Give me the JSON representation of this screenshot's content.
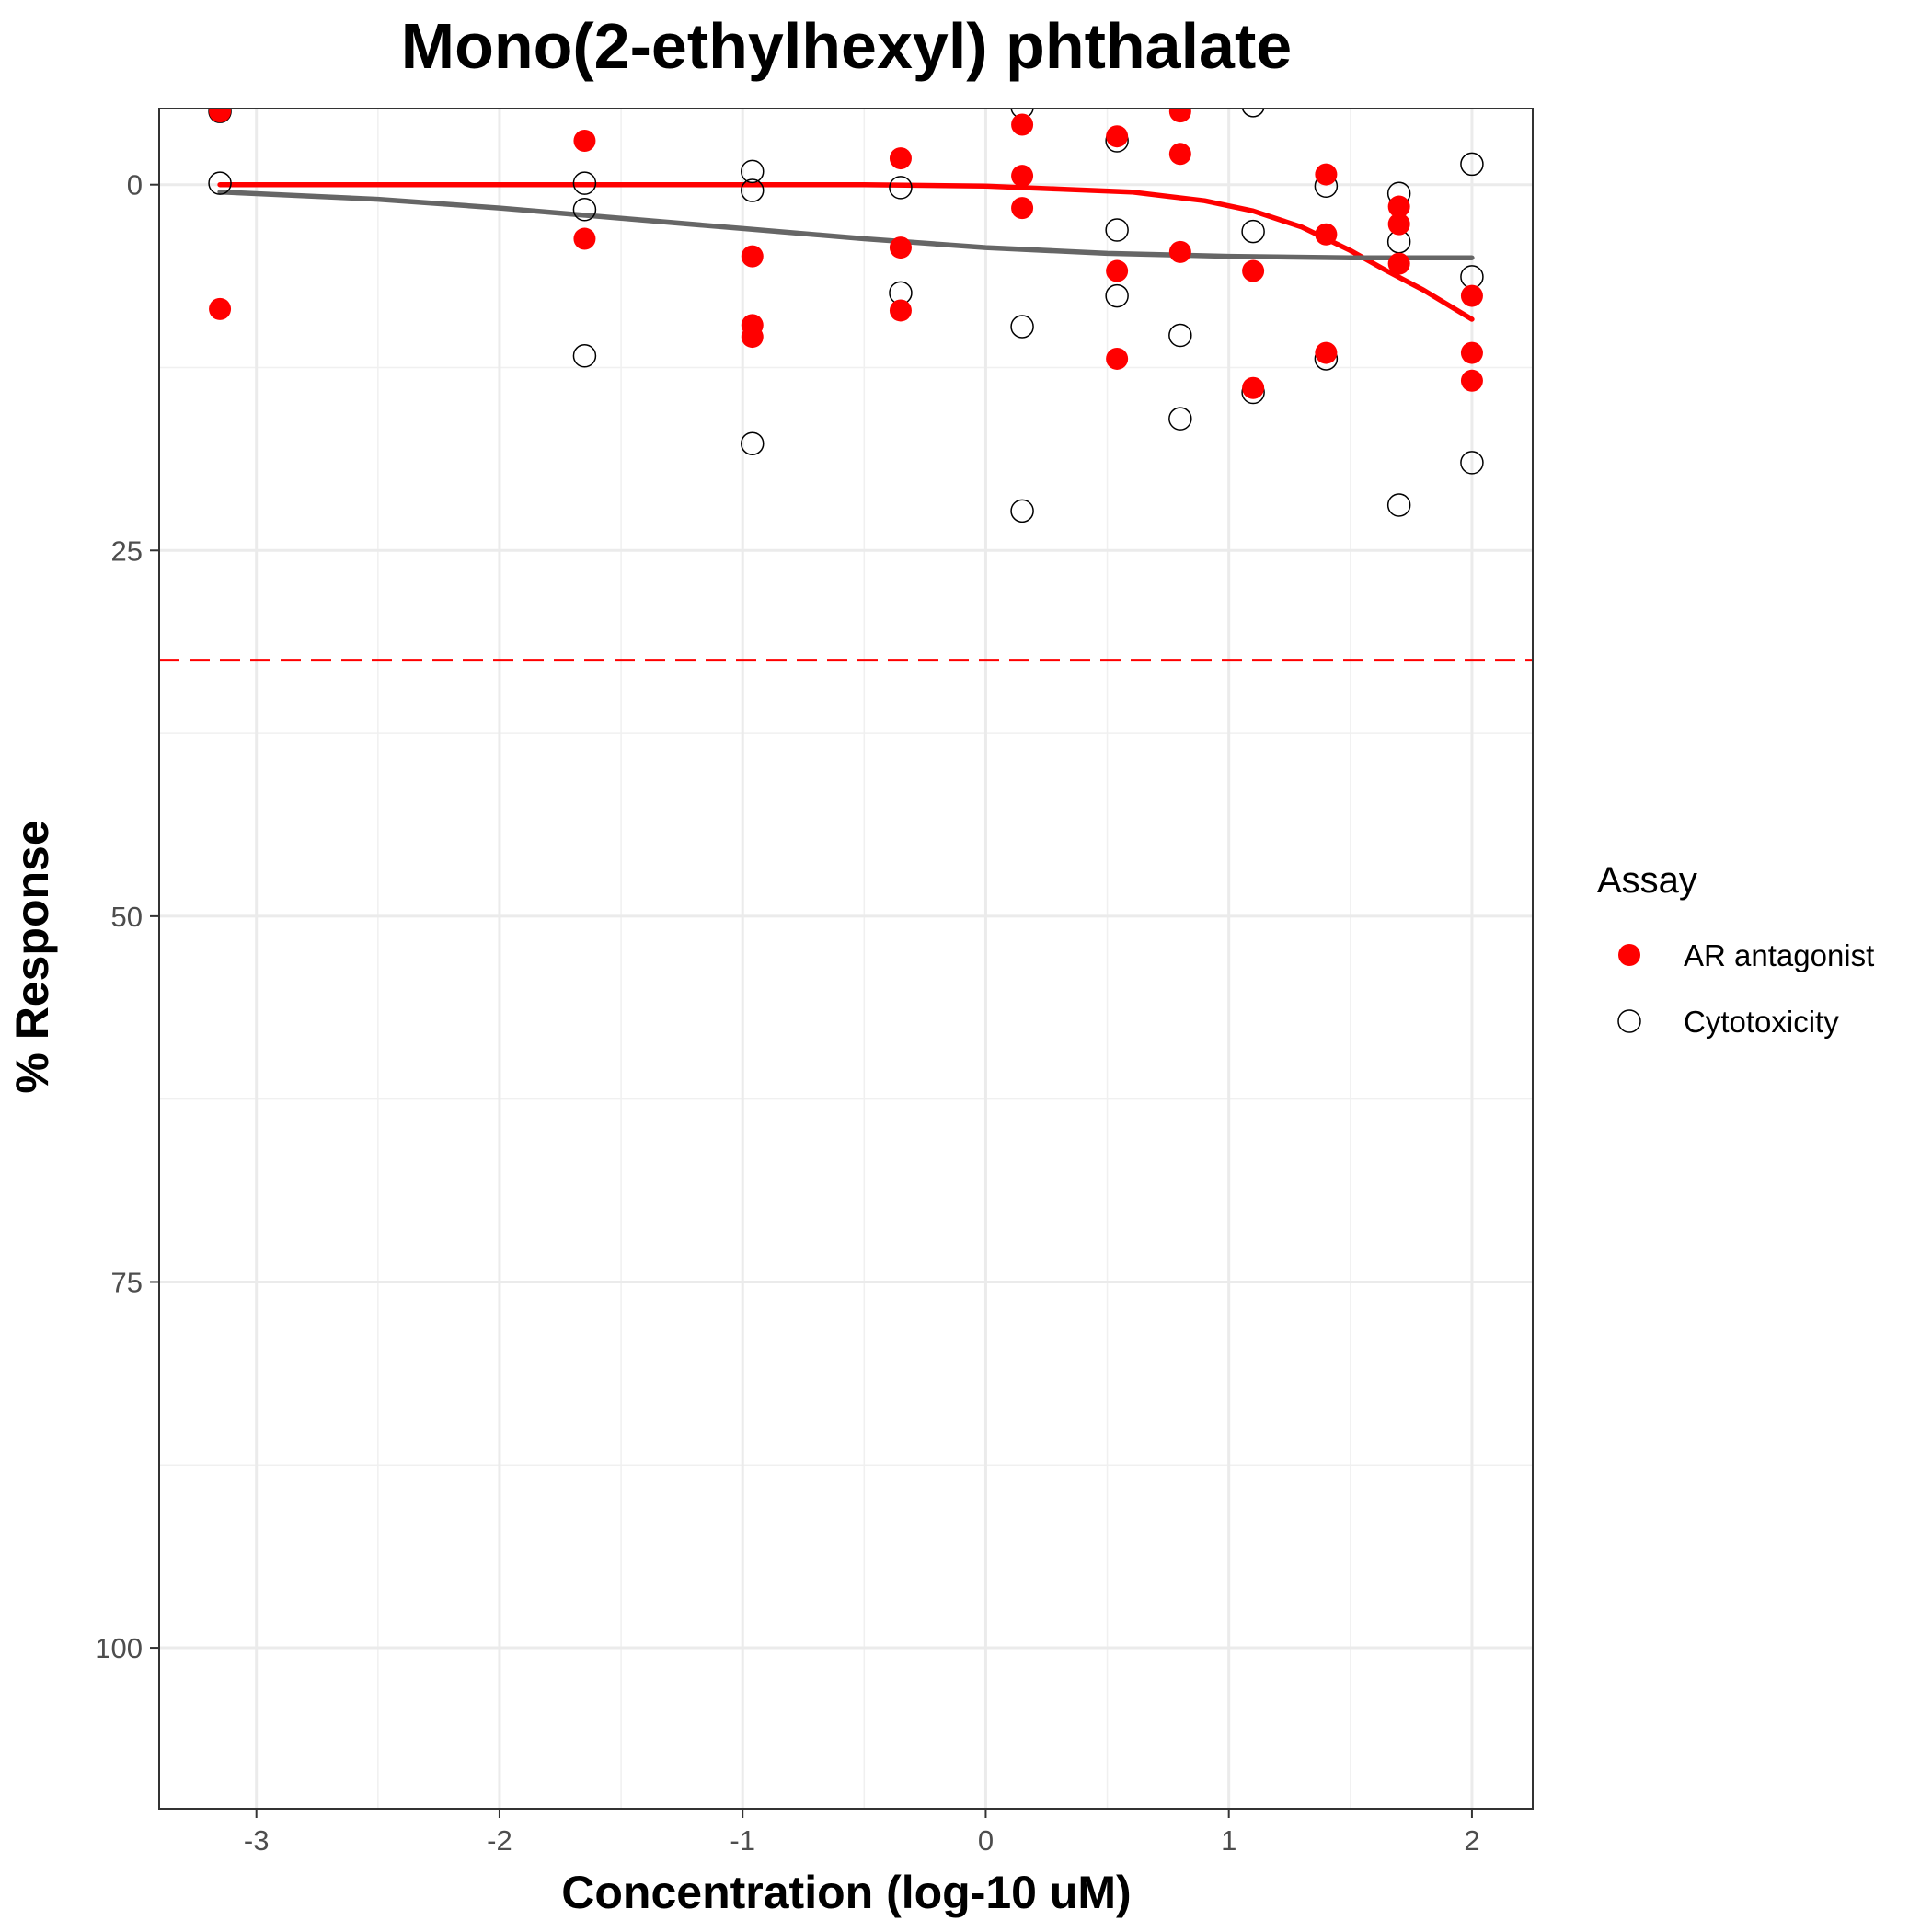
{
  "chart_data": {
    "type": "scatter",
    "title": "Mono(2-ethylhexyl) phthalate",
    "xlabel": "Concentration (log-10 uM)",
    "ylabel": "% Response",
    "xlim": [
      -3.4,
      2.25
    ],
    "ylim": [
      -5.2,
      111.0
    ],
    "y_reversed": true,
    "x_ticks": [
      -3,
      -2,
      -1,
      0,
      1,
      2
    ],
    "x_tick_labels": [
      "-3",
      "-2",
      "-1",
      "0",
      "1",
      "2"
    ],
    "y_ticks": [
      0,
      25,
      50,
      75,
      100
    ],
    "y_tick_labels": [
      "0",
      "25",
      "50",
      "75",
      "100"
    ],
    "grid": true,
    "threshold": {
      "y": 32.5,
      "color": "#ff0000",
      "style": "dashed"
    },
    "legend": {
      "title": "Assay",
      "position": "right"
    },
    "series": [
      {
        "name": "AR antagonist",
        "color": "#ff0000",
        "marker": "filled-circle",
        "points": [
          [
            -3.15,
            -5.0
          ],
          [
            -3.15,
            8.5
          ],
          [
            -1.65,
            -3.0
          ],
          [
            -1.65,
            3.7
          ],
          [
            -0.96,
            4.9
          ],
          [
            -0.96,
            9.6
          ],
          [
            -0.96,
            10.4
          ],
          [
            -0.35,
            -1.8
          ],
          [
            -0.35,
            4.3
          ],
          [
            -0.35,
            8.6
          ],
          [
            0.15,
            -4.1
          ],
          [
            0.15,
            -0.6
          ],
          [
            0.15,
            1.6
          ],
          [
            0.54,
            -3.3
          ],
          [
            0.54,
            5.9
          ],
          [
            0.54,
            11.9
          ],
          [
            0.8,
            -5.0
          ],
          [
            0.8,
            -2.1
          ],
          [
            0.8,
            4.6
          ],
          [
            1.1,
            5.9
          ],
          [
            1.1,
            13.9
          ],
          [
            1.4,
            -0.7
          ],
          [
            1.4,
            3.4
          ],
          [
            1.4,
            11.5
          ],
          [
            1.7,
            1.5
          ],
          [
            1.7,
            2.7
          ],
          [
            1.7,
            5.4
          ],
          [
            2.0,
            7.6
          ],
          [
            2.0,
            11.5
          ],
          [
            2.0,
            13.4
          ]
        ],
        "fit_curve": [
          [
            -3.15,
            0.0
          ],
          [
            -2.0,
            0.0
          ],
          [
            -1.0,
            0.0
          ],
          [
            -0.5,
            0.0
          ],
          [
            0.0,
            0.1
          ],
          [
            0.3,
            0.3
          ],
          [
            0.6,
            0.5
          ],
          [
            0.9,
            1.1
          ],
          [
            1.1,
            1.8
          ],
          [
            1.3,
            2.9
          ],
          [
            1.5,
            4.5
          ],
          [
            1.65,
            5.9
          ],
          [
            1.8,
            7.2
          ],
          [
            2.0,
            9.2
          ]
        ]
      },
      {
        "name": "Cytotoxicity",
        "color": "#000000",
        "marker": "open-circle",
        "points": [
          [
            -3.15,
            -5.0
          ],
          [
            -3.15,
            -0.1
          ],
          [
            -1.65,
            -0.1
          ],
          [
            -1.65,
            1.7
          ],
          [
            -1.65,
            11.7
          ],
          [
            -0.96,
            -0.9
          ],
          [
            -0.96,
            0.4
          ],
          [
            -0.96,
            17.7
          ],
          [
            -0.35,
            0.2
          ],
          [
            -0.35,
            7.4
          ],
          [
            0.15,
            -5.3
          ],
          [
            0.15,
            9.7
          ],
          [
            0.15,
            22.3
          ],
          [
            0.54,
            -3.0
          ],
          [
            0.54,
            3.1
          ],
          [
            0.54,
            7.6
          ],
          [
            0.8,
            10.3
          ],
          [
            0.8,
            16.0
          ],
          [
            1.1,
            -5.4
          ],
          [
            1.1,
            3.2
          ],
          [
            1.1,
            14.2
          ],
          [
            1.4,
            0.1
          ],
          [
            1.4,
            11.9
          ],
          [
            1.7,
            0.6
          ],
          [
            1.7,
            3.9
          ],
          [
            1.7,
            21.9
          ],
          [
            2.0,
            -1.4
          ],
          [
            2.0,
            6.3
          ],
          [
            2.0,
            19.0
          ]
        ],
        "fit_curve": [
          [
            -3.15,
            0.5
          ],
          [
            -2.5,
            1.0
          ],
          [
            -2.0,
            1.6
          ],
          [
            -1.5,
            2.3
          ],
          [
            -1.0,
            3.0
          ],
          [
            -0.5,
            3.7
          ],
          [
            0.0,
            4.3
          ],
          [
            0.5,
            4.7
          ],
          [
            1.0,
            4.9
          ],
          [
            1.5,
            5.0
          ],
          [
            2.0,
            5.0
          ]
        ],
        "fit_color": "#666666"
      }
    ]
  }
}
